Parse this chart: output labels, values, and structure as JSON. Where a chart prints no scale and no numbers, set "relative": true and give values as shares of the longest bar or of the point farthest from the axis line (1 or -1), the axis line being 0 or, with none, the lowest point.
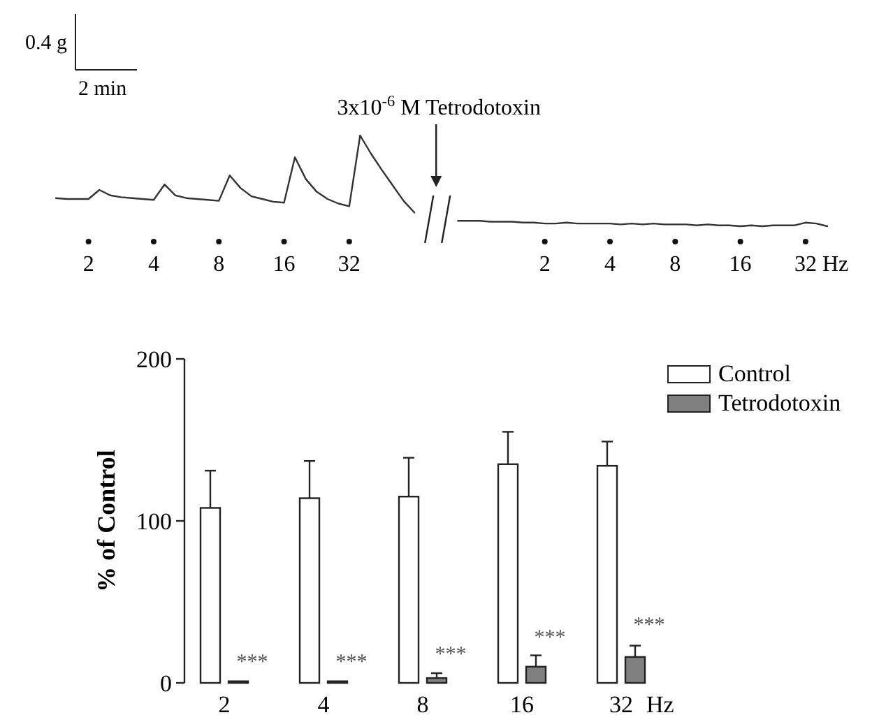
{
  "chart_data": [
    {
      "type": "line",
      "relative": true,
      "xlabel": "Hz",
      "categories": [
        null,
        null,
        null,
        "2",
        null,
        null,
        null,
        null,
        null,
        "4",
        null,
        null,
        null,
        null,
        null,
        "8",
        null,
        null,
        null,
        null,
        null,
        "16",
        null,
        null,
        null,
        null,
        null,
        "32",
        null,
        null,
        null,
        null,
        null,
        null,
        null,
        null,
        null,
        null,
        null,
        null,
        null,
        null,
        null,
        null,
        null,
        "2",
        null,
        null,
        null,
        null,
        null,
        "4",
        null,
        null,
        null,
        null,
        null,
        "8",
        null,
        null,
        null,
        null,
        null,
        "16",
        null,
        null,
        null,
        null,
        null,
        "32",
        null,
        null
      ],
      "series": [
        {
          "color": "#333333",
          "values": [
            0.31,
            0.3,
            0.3,
            0.3,
            0.4,
            0.34,
            0.32,
            0.31,
            0.3,
            0.29,
            0.46,
            0.34,
            0.31,
            0.3,
            0.29,
            0.28,
            0.56,
            0.42,
            0.33,
            0.3,
            0.27,
            0.26,
            0.76,
            0.52,
            0.38,
            0.3,
            0.25,
            0.22,
            1,
            0.8,
            0.62,
            0.45,
            0.28,
            0.15,
            null,
            null,
            null,
            null,
            null,
            null,
            null,
            null,
            null,
            null,
            null,
            null,
            null,
            null,
            null,
            null,
            null,
            null,
            null,
            null,
            null,
            null,
            null,
            null,
            null,
            null,
            null,
            null,
            null,
            null,
            null,
            null,
            null,
            null,
            null,
            null,
            null,
            null
          ]
        },
        {
          "color": "#333333",
          "values": [
            null,
            null,
            null,
            null,
            null,
            null,
            null,
            null,
            null,
            null,
            null,
            null,
            null,
            null,
            null,
            null,
            null,
            null,
            null,
            null,
            null,
            null,
            null,
            null,
            null,
            null,
            null,
            null,
            null,
            null,
            null,
            null,
            null,
            null,
            null,
            null,
            null,
            0.06,
            0.06,
            0.06,
            0.05,
            0.05,
            0.05,
            0.04,
            0.04,
            0.03,
            0.03,
            0.04,
            0.03,
            0.03,
            0.03,
            0.03,
            0.02,
            0.03,
            0.02,
            0.03,
            0.02,
            0.02,
            0.02,
            0.01,
            0.02,
            0.01,
            0.01,
            0,
            0.01,
            0,
            0.01,
            0.01,
            0.01,
            0.04,
            0.03,
            0
          ]
        }
      ],
      "annotations": [
        "0.4 g",
        "2 min",
        "3x10$^{-6}$ M Tetrodotoxin"
      ]
    },
    {
      "type": "bar",
      "ylabel": "% of Control",
      "xlabel": "Hz",
      "categories": [
        "2",
        "4",
        "8",
        "16",
        "32"
      ],
      "ylim": [
        0,
        200
      ],
      "yticks": [
        0,
        100,
        200
      ],
      "legend": "top right",
      "series": [
        {
          "name": "Control",
          "color": "#ffffff",
          "values": [
            108,
            114,
            115,
            135,
            134
          ],
          "errors": [
            [
              108,
              131
            ],
            [
              114,
              137
            ],
            [
              115,
              139
            ],
            [
              135,
              155
            ],
            [
              134,
              149
            ]
          ]
        },
        {
          "name": "Tetrodotoxin",
          "color": "#808080",
          "values": [
            1,
            1,
            3,
            10,
            16
          ],
          "errors": [
            null,
            null,
            [
              3,
              6
            ],
            [
              10,
              17
            ],
            [
              16,
              23
            ]
          ]
        }
      ],
      "annotations": [
        {
          "text": "***",
          "x": "2",
          "y": 9
        },
        {
          "text": "***",
          "x": "4",
          "y": 9
        },
        {
          "text": "***",
          "x": "8",
          "y": 14
        },
        {
          "text": "***",
          "x": "16",
          "y": 24
        },
        {
          "text": "***",
          "x": "32",
          "y": 32
        }
      ]
    }
  ]
}
